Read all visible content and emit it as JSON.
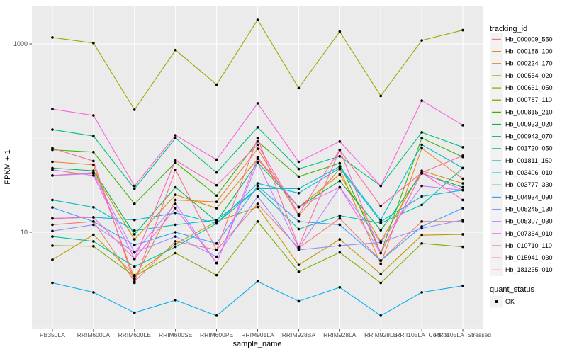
{
  "chart_data": {
    "type": "line",
    "title": "",
    "xlabel": "sample_name",
    "ylabel": "FPKM + 1",
    "y_scale": "log10",
    "y_major_ticks": [
      10,
      1000
    ],
    "y_minor_gridlines": [
      1,
      100
    ],
    "ylim": [
      0.93,
      2550
    ],
    "grid": true,
    "legend_position": "right",
    "panel_bg": "#EBEBEB",
    "grid_color": "#FFFFFF",
    "tick_color": "#333333",
    "points_color": "#000000",
    "categories": [
      "PB350LA",
      "RRIM600LA",
      "RRIM600LE",
      "RRIM600SE",
      "RRIM600PE",
      "RRIM901LA",
      "RRIM928BA",
      "RRIM928LA",
      "RRIM928LE",
      "RRII105LA_Control",
      "RRII105LA_Stressed"
    ],
    "series": [
      {
        "name": "Hb_000009_550",
        "color": "#F8766D",
        "values": [
          12,
          13,
          3,
          8,
          6.5,
          20,
          6.8,
          14,
          5,
          13,
          13
        ]
      },
      {
        "name": "Hb_000188_100",
        "color": "#EA8331",
        "values": [
          56,
          52,
          3.2,
          22,
          21,
          77,
          15,
          47,
          4.6,
          78,
          37
        ]
      },
      {
        "name": "Hb_000224_170",
        "color": "#D89000",
        "values": [
          40,
          43,
          8.4,
          25,
          18,
          60,
          18.5,
          41,
          8,
          45,
          33
        ]
      },
      {
        "name": "Hb_000554_020",
        "color": "#C09B00",
        "values": [
          5.1,
          9.4,
          3.5,
          7.5,
          13,
          18.5,
          4.5,
          8.4,
          3.6,
          9.3,
          9.5
        ]
      },
      {
        "name": "Hb_000661_050",
        "color": "#A3A500",
        "values": [
          1170,
          1020,
          200,
          860,
          370,
          1800,
          340,
          1350,
          280,
          1090,
          1400
        ]
      },
      {
        "name": "Hb_000787_110",
        "color": "#7CAE00",
        "values": [
          7.2,
          7.1,
          3.4,
          6,
          3.5,
          13,
          3.8,
          6.1,
          2.9,
          7.6,
          7
        ]
      },
      {
        "name": "Hb_000815_210",
        "color": "#39B600",
        "values": [
          75,
          71,
          20,
          55,
          24.5,
          92,
          39,
          54,
          6,
          100,
          63
        ]
      },
      {
        "name": "Hb_000923_020",
        "color": "#00BB4E",
        "values": [
          48,
          45,
          9.5,
          30,
          13,
          55,
          18.5,
          35,
          10.5,
          42,
          30
        ]
      },
      {
        "name": "Hb_000943_070",
        "color": "#00BF7D",
        "values": [
          123,
          105,
          29,
          100,
          43,
          130,
          47,
          64,
          31,
          115,
          80
        ]
      },
      {
        "name": "Hb_001720_050",
        "color": "#00C1A3",
        "values": [
          9,
          8,
          4.3,
          7,
          12.4,
          29,
          10.8,
          15,
          12.5,
          19.5,
          48
        ]
      },
      {
        "name": "Hb_001811_150",
        "color": "#00BFC4",
        "values": [
          22,
          18.4,
          10.4,
          12,
          13.5,
          29,
          29,
          50,
          13.5,
          85,
          48
        ]
      },
      {
        "name": "Hb_003406_010",
        "color": "#00BBDC",
        "values": [
          14,
          14.4,
          13.5,
          16,
          12.4,
          33,
          26,
          48,
          13,
          24,
          28
        ]
      },
      {
        "name": "Hb_003777_330",
        "color": "#00B0F6",
        "values": [
          2.9,
          2.3,
          1.4,
          1.9,
          1.3,
          3,
          1.85,
          2.6,
          1.3,
          2.3,
          2.7
        ]
      },
      {
        "name": "Hb_004934_090",
        "color": "#35A2FF",
        "values": [
          18.3,
          13,
          7.3,
          10,
          7.6,
          31,
          13,
          12,
          5,
          11.5,
          18
        ]
      },
      {
        "name": "Hb_005245_130",
        "color": "#9590FF",
        "values": [
          10.3,
          12,
          6.1,
          9,
          5.5,
          24,
          6.5,
          7.2,
          7.8,
          11,
          13.5
        ]
      },
      {
        "name": "Hb_005307_030",
        "color": "#C77CFF",
        "values": [
          40,
          42,
          6.1,
          20,
          4.7,
          55,
          6.8,
          30,
          7.8,
          31,
          28
        ]
      },
      {
        "name": "Hb_007364_010",
        "color": "#E76BF3",
        "values": [
          46,
          40,
          5.2,
          18,
          4.7,
          62,
          18.5,
          30,
          6,
          43,
          28
        ]
      },
      {
        "name": "Hb_010710_110",
        "color": "#FA62DB",
        "values": [
          203,
          174,
          31,
          107,
          59,
          234,
          56,
          92,
          31,
          250,
          137
        ]
      },
      {
        "name": "Hb_015941_030",
        "color": "#FF62BC",
        "values": [
          14,
          14.4,
          5.2,
          58,
          31.5,
          85,
          15.5,
          75,
          6,
          43,
          22
        ]
      },
      {
        "name": "Hb_181235_010",
        "color": "#FF6A98",
        "values": [
          78,
          57,
          2.9,
          46,
          6.5,
          100,
          7,
          75,
          19,
          43,
          65
        ]
      }
    ],
    "legend": {
      "tracking_title": "tracking_id",
      "quant_title": "quant_status",
      "quant_label": "OK",
      "key_bg": "#F2F2F2"
    }
  }
}
